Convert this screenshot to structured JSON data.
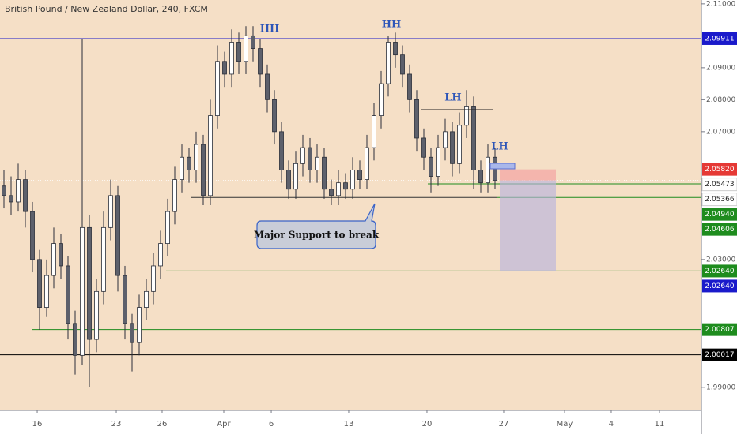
{
  "chart_data": {
    "type": "candlestick",
    "title": "British Pound / New Zealand Dollar, 240, FXCM",
    "up_color": "#ffffff",
    "down_color": "#5d606b",
    "wick_color": "#2a2e39",
    "background": "#f5dfc6",
    "ylim": [
      1.9828,
      2.1112
    ],
    "yticks": [
      {
        "value": 2.11,
        "label": "2.11000"
      },
      {
        "value": 2.09,
        "label": "2.09000"
      },
      {
        "value": 2.08,
        "label": "2.08000"
      },
      {
        "value": 2.07,
        "label": "2.07000"
      },
      {
        "value": 2.03,
        "label": "2.03000"
      },
      {
        "value": 1.99,
        "label": "1.99000"
      }
    ],
    "xlim": [
      -0.556,
      98
    ],
    "xticks": [
      {
        "value": 4.67,
        "label": "16"
      },
      {
        "value": 15.78,
        "label": "23"
      },
      {
        "value": 22.22,
        "label": "26"
      },
      {
        "value": 30.89,
        "label": "Apr"
      },
      {
        "value": 37.56,
        "label": "6"
      },
      {
        "value": 48.44,
        "label": "13"
      },
      {
        "value": 59.44,
        "label": "20"
      },
      {
        "value": 70.22,
        "label": "27"
      },
      {
        "value": 78.78,
        "label": "May"
      },
      {
        "value": 85.33,
        "label": "4"
      },
      {
        "value": 92.11,
        "label": "11"
      }
    ],
    "candles": [
      [
        2.053,
        2.058,
        2.046,
        2.05
      ],
      [
        2.05,
        2.056,
        2.044,
        2.048
      ],
      [
        2.048,
        2.06,
        2.045,
        2.055
      ],
      [
        2.055,
        2.058,
        2.04,
        2.045
      ],
      [
        2.045,
        2.048,
        2.026,
        2.03
      ],
      [
        2.03,
        2.033,
        2.008,
        2.015
      ],
      [
        2.015,
        2.03,
        2.012,
        2.025
      ],
      [
        2.025,
        2.04,
        2.021,
        2.035
      ],
      [
        2.035,
        2.038,
        2.024,
        2.028
      ],
      [
        2.028,
        2.031,
        2.005,
        2.01
      ],
      [
        2.01,
        2.014,
        1.994,
        2.0
      ],
      [
        2.0,
        2.099,
        1.997,
        2.04
      ],
      [
        2.04,
        2.044,
        1.99,
        2.005
      ],
      [
        2.005,
        2.024,
        2.001,
        2.02
      ],
      [
        2.02,
        2.045,
        2.016,
        2.04
      ],
      [
        2.04,
        2.055,
        2.036,
        2.05
      ],
      [
        2.05,
        2.053,
        2.02,
        2.025
      ],
      [
        2.025,
        2.028,
        2.005,
        2.01
      ],
      [
        2.01,
        2.013,
        1.995,
        2.004
      ],
      [
        2.004,
        2.019,
        2.0,
        2.015
      ],
      [
        2.015,
        2.024,
        2.011,
        2.02
      ],
      [
        2.02,
        2.032,
        2.016,
        2.028
      ],
      [
        2.028,
        2.039,
        2.024,
        2.035
      ],
      [
        2.035,
        2.049,
        2.031,
        2.045
      ],
      [
        2.045,
        2.059,
        2.041,
        2.055
      ],
      [
        2.055,
        2.066,
        2.051,
        2.062
      ],
      [
        2.062,
        2.065,
        2.054,
        2.058
      ],
      [
        2.058,
        2.07,
        2.054,
        2.066
      ],
      [
        2.066,
        2.069,
        2.047,
        2.05
      ],
      [
        2.05,
        2.08,
        2.047,
        2.075
      ],
      [
        2.075,
        2.097,
        2.071,
        2.092
      ],
      [
        2.092,
        2.095,
        2.084,
        2.088
      ],
      [
        2.088,
        2.102,
        2.084,
        2.098
      ],
      [
        2.098,
        2.101,
        2.088,
        2.092
      ],
      [
        2.092,
        2.103,
        2.088,
        2.1
      ],
      [
        2.1,
        2.103,
        2.092,
        2.096
      ],
      [
        2.096,
        2.099,
        2.084,
        2.088
      ],
      [
        2.088,
        2.091,
        2.076,
        2.08
      ],
      [
        2.08,
        2.083,
        2.066,
        2.07
      ],
      [
        2.07,
        2.073,
        2.054,
        2.058
      ],
      [
        2.058,
        2.061,
        2.049,
        2.052
      ],
      [
        2.052,
        2.064,
        2.049,
        2.06
      ],
      [
        2.06,
        2.069,
        2.056,
        2.065
      ],
      [
        2.065,
        2.068,
        2.054,
        2.058
      ],
      [
        2.058,
        2.066,
        2.054,
        2.062
      ],
      [
        2.062,
        2.065,
        2.049,
        2.052
      ],
      [
        2.052,
        2.055,
        2.047,
        2.05
      ],
      [
        2.05,
        2.058,
        2.047,
        2.054
      ],
      [
        2.054,
        2.057,
        2.049,
        2.052
      ],
      [
        2.052,
        2.062,
        2.049,
        2.058
      ],
      [
        2.058,
        2.061,
        2.052,
        2.055
      ],
      [
        2.055,
        2.069,
        2.052,
        2.065
      ],
      [
        2.065,
        2.079,
        2.061,
        2.075
      ],
      [
        2.075,
        2.089,
        2.071,
        2.085
      ],
      [
        2.085,
        2.1,
        2.081,
        2.098
      ],
      [
        2.098,
        2.101,
        2.09,
        2.094
      ],
      [
        2.094,
        2.097,
        2.084,
        2.088
      ],
      [
        2.088,
        2.091,
        2.076,
        2.08
      ],
      [
        2.08,
        2.083,
        2.064,
        2.068
      ],
      [
        2.068,
        2.071,
        2.058,
        2.062
      ],
      [
        2.062,
        2.065,
        2.051,
        2.056
      ],
      [
        2.056,
        2.069,
        2.053,
        2.065
      ],
      [
        2.065,
        2.074,
        2.061,
        2.07
      ],
      [
        2.07,
        2.073,
        2.056,
        2.06
      ],
      [
        2.06,
        2.076,
        2.057,
        2.072
      ],
      [
        2.072,
        2.083,
        2.068,
        2.078
      ],
      [
        2.078,
        2.081,
        2.052,
        2.058
      ],
      [
        2.058,
        2.061,
        2.051,
        2.054
      ],
      [
        2.054,
        2.066,
        2.051,
        2.062
      ],
      [
        2.062,
        2.065,
        2.052,
        2.0547
      ]
    ],
    "price_levels": [
      {
        "value": 2.09911,
        "label": "2.09911",
        "color": "#1a1acb"
      },
      {
        "value": 2.0582,
        "label": "2.05820",
        "color": "#e53935"
      },
      {
        "value": 2.05473,
        "label": "2.05473",
        "color": "#ffffff"
      },
      {
        "value": 2.05366,
        "label": "2.05366",
        "color": "#ffffff"
      },
      {
        "value": 2.0494,
        "label": "2.04940",
        "color": "#1e8c1e"
      },
      {
        "value": 2.04606,
        "label": "2.04606",
        "color": "#1e8c1e"
      },
      {
        "value": 2.0264,
        "label": "2.02640",
        "color": "#1e8c1e"
      },
      {
        "value": 2.0264,
        "label": "2.02640",
        "color": "#1a1acb"
      },
      {
        "value": 2.00807,
        "label": "2.00807",
        "color": "#1e8c1e"
      },
      {
        "value": 2.00017,
        "label": "2.00017",
        "color": "#000000"
      }
    ],
    "annotations": [
      "HH",
      "HH",
      "LH",
      "LH"
    ],
    "callout": "Major Support to break"
  }
}
